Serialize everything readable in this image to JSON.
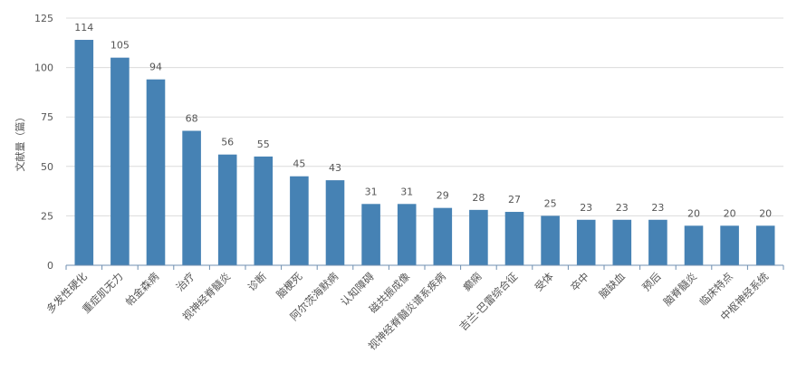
{
  "chart_data": {
    "type": "bar",
    "ylabel": "文献量（篇）",
    "ylim": [
      0,
      125
    ],
    "yticks": [
      0,
      25,
      50,
      75,
      100,
      125
    ],
    "grid": true,
    "bar_color": "#4682b4",
    "categories": [
      "多发性硬化",
      "重症肌无力",
      "帕金森病",
      "治疗",
      "视神经脊髓炎",
      "诊断",
      "脑梗死",
      "阿尔茨海默病",
      "认知障碍",
      "磁共振成像",
      "视神经脊髓炎谱系疾病",
      "癫痫",
      "吉兰-巴雷综合征",
      "受体",
      "卒中",
      "脑缺血",
      "预后",
      "脑脊髓炎",
      "临床特点",
      "中枢神经系统"
    ],
    "values": [
      114,
      105,
      94,
      68,
      56,
      55,
      45,
      43,
      31,
      31,
      29,
      28,
      27,
      25,
      23,
      23,
      23,
      20,
      20,
      20
    ]
  }
}
